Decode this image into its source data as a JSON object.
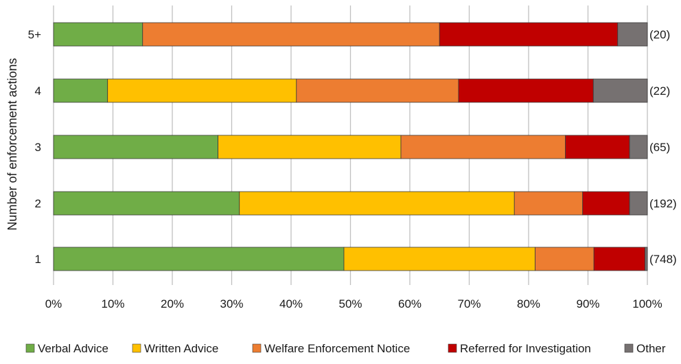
{
  "chart_data": {
    "type": "bar",
    "orientation": "horizontal",
    "stacked": true,
    "normalized": true,
    "ylabel": "Number of enforcement actions",
    "xlabel": "",
    "xlim": [
      0,
      100
    ],
    "x_ticks": [
      "0%",
      "10%",
      "20%",
      "30%",
      "40%",
      "50%",
      "60%",
      "70%",
      "80%",
      "90%",
      "100%"
    ],
    "grid": "vertical",
    "legend_position": "bottom",
    "categories": [
      "1",
      "2",
      "3",
      "4",
      "5+"
    ],
    "counts": [
      "(748)",
      "(192)",
      "(65)",
      "(22)",
      "(20)"
    ],
    "series": [
      {
        "name": "Verbal Advice",
        "color": "#70AD47",
        "values": [
          48.9,
          31.3,
          27.7,
          9.1,
          15.0
        ]
      },
      {
        "name": "Written Advice",
        "color": "#FFC000",
        "values": [
          32.2,
          46.3,
          30.8,
          31.8,
          0.0
        ]
      },
      {
        "name": "Welfare Enforcement Notice",
        "color": "#ED7D31",
        "values": [
          9.9,
          11.5,
          27.7,
          27.3,
          50.0
        ]
      },
      {
        "name": "Referred for Investigation",
        "color": "#C00000",
        "values": [
          8.6,
          7.9,
          10.8,
          22.7,
          30.0
        ]
      },
      {
        "name": "Other",
        "color": "#767171",
        "values": [
          0.4,
          3.0,
          3.0,
          9.1,
          5.0
        ]
      }
    ]
  }
}
